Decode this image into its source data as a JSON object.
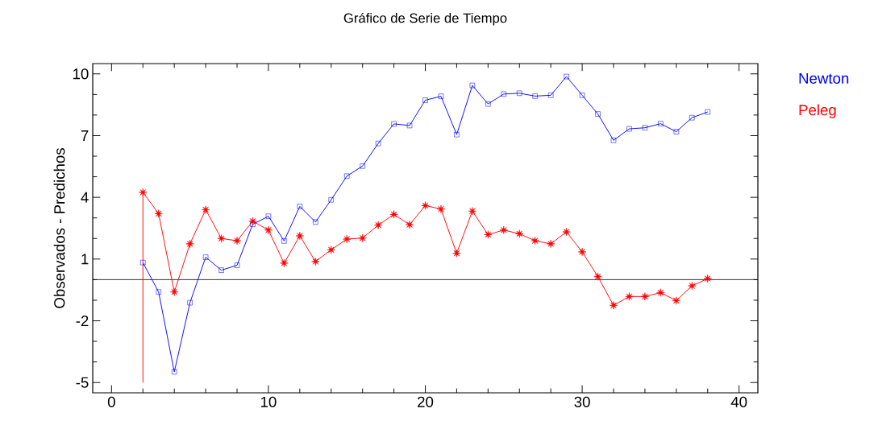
{
  "chart_data": {
    "type": "line",
    "title": "Gráfico de Serie de Tiempo",
    "ylabel": "Observados - Predichos",
    "xlim": [
      -1.2,
      41.2
    ],
    "xticks": [
      0,
      10,
      20,
      30,
      40
    ],
    "ylim": [
      -5.5,
      10.5
    ],
    "yticks": [
      -5,
      -2,
      1,
      4,
      7,
      10
    ],
    "x": [
      2,
      3,
      4,
      5,
      6,
      7,
      8,
      9,
      10,
      11,
      12,
      13,
      14,
      15,
      16,
      17,
      18,
      19,
      20,
      21,
      22,
      23,
      24,
      25,
      26,
      27,
      28,
      29,
      30,
      31,
      32,
      33,
      34,
      35,
      36,
      37,
      38
    ],
    "series": [
      {
        "name": "Newton",
        "color": "#0000ff",
        "marker": "square",
        "values": [
          0.83,
          -0.6,
          -4.48,
          -1.12,
          1.09,
          0.46,
          0.7,
          2.69,
          3.08,
          1.88,
          3.56,
          2.8,
          3.88,
          5.03,
          5.52,
          6.62,
          7.57,
          7.49,
          8.72,
          8.91,
          7.05,
          9.44,
          8.54,
          9.02,
          9.06,
          8.92,
          8.96,
          9.87,
          8.96,
          8.05,
          6.77,
          7.33,
          7.38,
          7.58,
          7.19,
          7.87,
          8.15
        ]
      },
      {
        "name": "Peleg",
        "color": "#ff0000",
        "marker": "star",
        "values": [
          4.24,
          3.21,
          -0.6,
          1.74,
          3.4,
          2.0,
          1.89,
          2.84,
          2.41,
          0.8,
          2.13,
          0.88,
          1.45,
          1.97,
          2.02,
          2.65,
          3.17,
          2.67,
          3.6,
          3.43,
          1.28,
          3.33,
          2.19,
          2.41,
          2.23,
          1.89,
          1.74,
          2.32,
          1.35,
          0.15,
          -1.25,
          -0.82,
          -0.82,
          -0.63,
          -1.02,
          -0.3,
          0.05
        ]
      },
      {
        "color": "#ff0000",
        "marker": "none",
        "x": [
          2,
          2
        ],
        "values": [
          -5,
          4.24
        ]
      }
    ],
    "ref_lines": [
      {
        "axis": "y",
        "value": 0,
        "color": "#000000"
      }
    ],
    "legend": "top right",
    "grid": false
  }
}
